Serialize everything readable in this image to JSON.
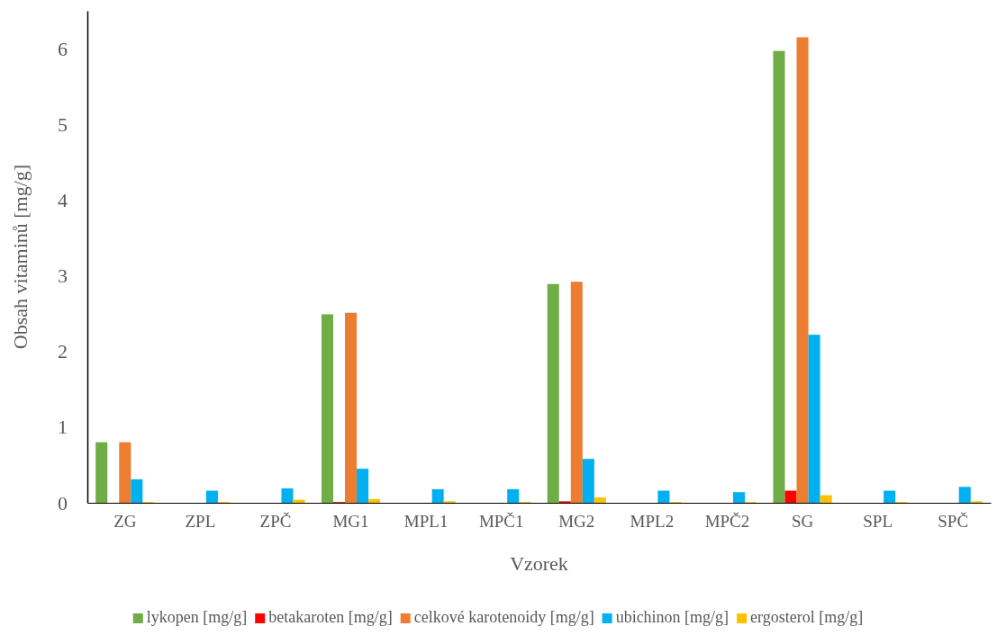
{
  "chart_data": {
    "type": "bar",
    "xlabel": "Vzorek",
    "ylabel": "Obsah vitaminů [mg/g]",
    "categories": [
      "ZG",
      "ZPL",
      "ZPČ",
      "MG1",
      "MPL1",
      "MPČ1",
      "MG2",
      "MPL2",
      "MPČ2",
      "SG",
      "SPL",
      "SPČ"
    ],
    "series": [
      {
        "name": "lykopen [mg/g]",
        "color": "#70ad47",
        "values": [
          0.8,
          0,
          0,
          2.49,
          0,
          0,
          2.89,
          0,
          0,
          5.97,
          0,
          0
        ]
      },
      {
        "name": "betakaroten [mg/g]",
        "color": "#ff0000",
        "values": [
          0,
          0,
          0,
          0.01,
          0,
          0,
          0.02,
          0,
          0,
          0.16,
          0,
          0
        ]
      },
      {
        "name": "celkové karotenoidy [mg/g]",
        "color": "#ed7d31",
        "values": [
          0.8,
          0,
          0,
          2.51,
          0,
          0,
          2.92,
          0,
          0,
          6.15,
          0,
          0
        ]
      },
      {
        "name": "ubichinon [mg/g]",
        "color": "#00b0f0",
        "values": [
          0.31,
          0.16,
          0.19,
          0.45,
          0.18,
          0.18,
          0.58,
          0.16,
          0.14,
          2.22,
          0.16,
          0.21
        ]
      },
      {
        "name": "ergosterol [mg/g]",
        "color": "#ffc000",
        "values": [
          0.01,
          0.01,
          0.04,
          0.05,
          0.02,
          0.01,
          0.07,
          0.01,
          0.01,
          0.1,
          0.01,
          0.02
        ]
      }
    ],
    "ylim": [
      0,
      6.5
    ],
    "yticks": [
      0,
      1,
      2,
      3,
      4,
      5,
      6
    ],
    "grid": false,
    "legend": "bottom"
  }
}
